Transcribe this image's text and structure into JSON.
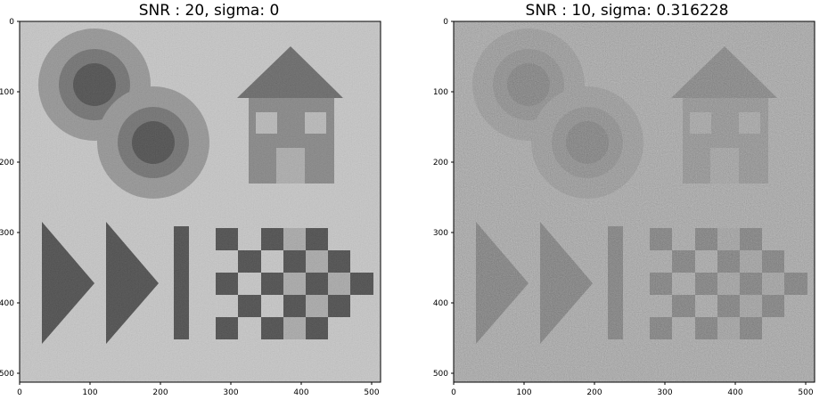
{
  "panels": [
    {
      "title": "SNR : 20, sigma: 0",
      "xticks": [
        "0",
        "100",
        "200",
        "300",
        "400",
        "500"
      ],
      "yticks": [
        "0",
        "100",
        "200",
        "300",
        "400",
        "500"
      ],
      "background_gray": "#c7c7c7",
      "noise_amount": 0.18
    },
    {
      "title": "SNR : 10, sigma: 0.316228",
      "xticks": [
        "0",
        "100",
        "200",
        "300",
        "400",
        "500"
      ],
      "yticks": [
        "0",
        "100",
        "200",
        "300",
        "400",
        "500"
      ],
      "background_gray": "#a3a3a3",
      "noise_amount": 0.55
    }
  ],
  "image_size": [
    512,
    512
  ],
  "colors": {
    "dark": "#3c3c3c",
    "mid_dark": "#666666",
    "mid": "#8a8a8a",
    "light_mid": "#a8a8a8"
  }
}
